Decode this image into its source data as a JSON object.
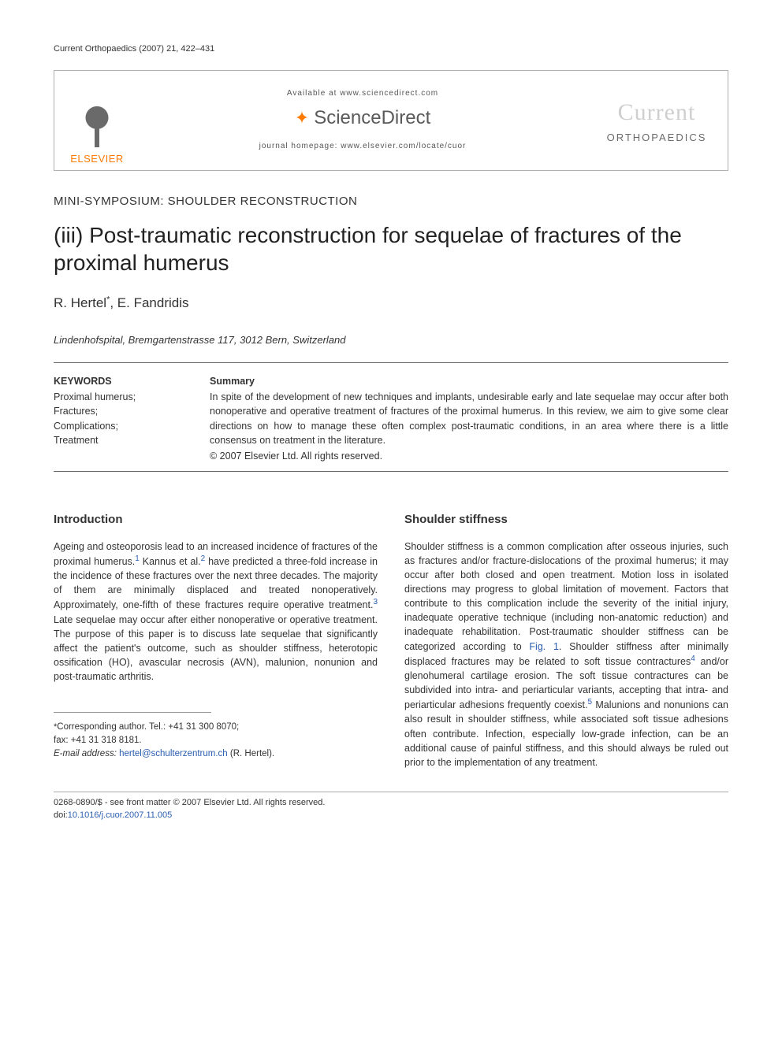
{
  "page": {
    "running_head": "Current Orthopaedics (2007) 21, 422–431",
    "background_color": "#ffffff",
    "text_color": "#333333"
  },
  "header": {
    "elsevier_label": "ELSEVIER",
    "available_text": "Available at www.sciencedirect.com",
    "sd_brand": "ScienceDirect",
    "journal_homepage": "journal homepage: www.elsevier.com/locate/cuor",
    "journal_title_top": "Current",
    "journal_title_bottom": "ORTHOPAEDICS",
    "accent_color": "#ff7a00",
    "muted_color": "#cfcfcf"
  },
  "article": {
    "section_label": "MINI-SYMPOSIUM: SHOULDER RECONSTRUCTION",
    "title": "(iii) Post-traumatic reconstruction for sequelae of fractures of the proximal humerus",
    "authors_html_prefix": "R. Hertel",
    "author_marker": "*",
    "authors_html_suffix": ", E. Fandridis",
    "affiliation": "Lindenhofspital, Bremgartenstrasse 117, 3012 Bern, Switzerland"
  },
  "keywords": {
    "heading": "KEYWORDS",
    "items": "Proximal humerus;\nFractures;\nComplications;\nTreatment"
  },
  "summary": {
    "heading": "Summary",
    "text": "In spite of the development of new techniques and implants, undesirable early and late sequelae may occur after both nonoperative and operative treatment of fractures of the proximal humerus. In this review, we aim to give some clear directions on how to manage these often complex post-traumatic conditions, in an area where there is a little consensus on treatment in the literature.",
    "copyright": "© 2007 Elsevier Ltd. All rights reserved."
  },
  "introduction": {
    "heading": "Introduction",
    "p1a": "Ageing and osteoporosis lead to an increased incidence of fractures of the proximal humerus.",
    "ref1": "1",
    "p1b": " Kannus et al.",
    "ref2": "2",
    "p1c": " have predicted a three-fold increase in the incidence of these fractures over the next three decades. The majority of them are minimally displaced and treated nonoperatively. Approximately, one-fifth of these fractures require operative treatment.",
    "ref3": "3",
    "p1d": " Late sequelae may occur after either nonoperative or operative treatment. The purpose of this paper is to discuss late sequelae that significantly affect the patient's outcome, such as shoulder stiffness, heterotopic ossification (HO), avascular necrosis (AVN), malunion, nonunion and post-traumatic arthritis."
  },
  "stiffness": {
    "heading": "Shoulder stiffness",
    "p1a": "Shoulder stiffness is a common complication after osseous injuries, such as fractures and/or fracture-dislocations of the proximal humerus; it may occur after both closed and open treatment. Motion loss in isolated directions may progress to global limitation of movement. Factors that contribute to this complication include the severity of the initial injury, inadequate operative technique (including non-anatomic reduction) and inadequate rehabilitation. Post-traumatic shoulder stiffness can be categorized according to ",
    "fig1": "Fig. 1",
    "p1b": ". Shoulder stiffness after minimally displaced fractures may be related to soft tissue contractures",
    "ref4": "4",
    "p1c": " and/or glenohumeral cartilage erosion. The soft tissue contractures can be subdivided into intra- and periarticular variants, accepting that intra- and periarticular adhesions frequently coexist.",
    "ref5": "5",
    "p1d": " Malunions and nonunions can also result in shoulder stiffness, while associated soft tissue adhesions often contribute. Infection, especially low-grade infection, can be an additional cause of painful stiffness, and this should always be ruled out prior to the implementation of any treatment."
  },
  "correspondence": {
    "star": "*",
    "line1": "Corresponding author. Tel.: +41 31 300 8070;",
    "line2": "fax: +41 31 318 8181.",
    "email_label": "E-mail address:",
    "email": "hertel@schulterzentrum.ch",
    "email_suffix": " (R. Hertel)."
  },
  "footer": {
    "line1": "0268-0890/$ - see front matter © 2007 Elsevier Ltd. All rights reserved.",
    "doi_prefix": "doi:",
    "doi": "10.1016/j.cuor.2007.11.005"
  },
  "styling": {
    "title_fontsize": 28,
    "body_fontsize": 12.5,
    "link_color": "#2a5db0",
    "rule_color": "#666666"
  }
}
